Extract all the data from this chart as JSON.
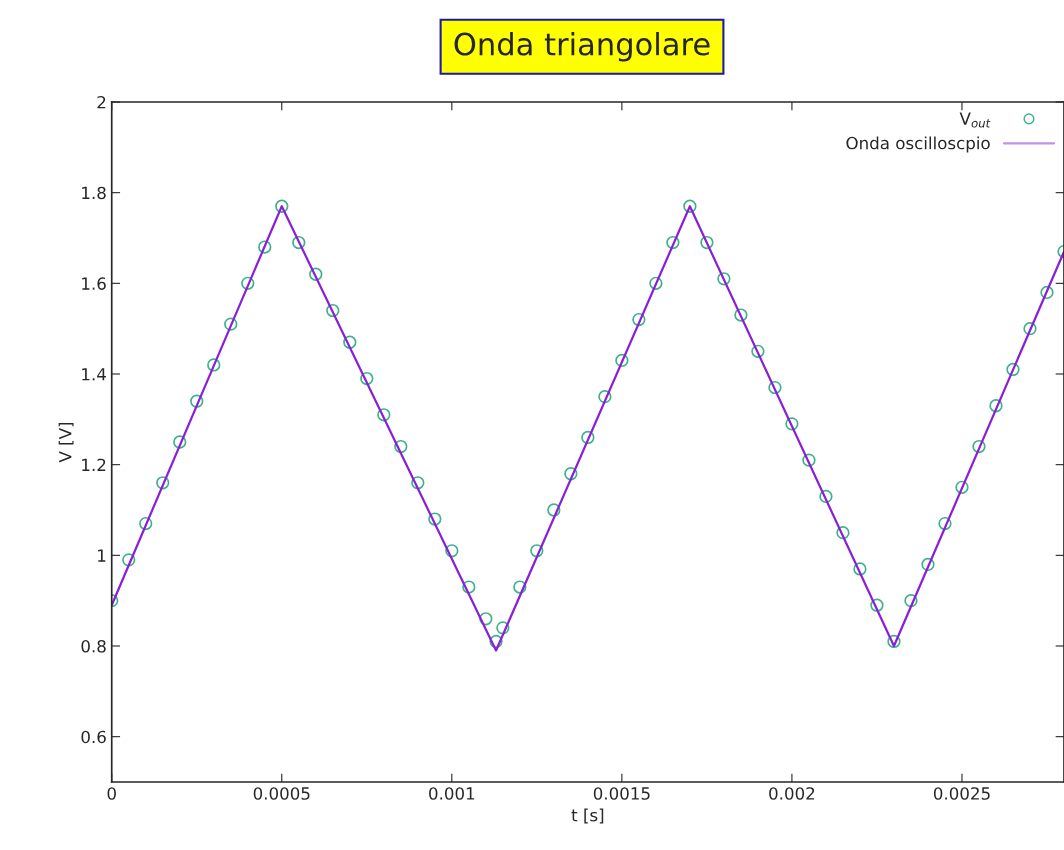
{
  "chart_data": {
    "type": "scatter",
    "title": "Onda triangolare",
    "xlabel": "t [s]",
    "ylabel": "V [V]",
    "xlim": [
      0,
      0.0028
    ],
    "ylim": [
      0.5,
      2
    ],
    "xticks": [
      0,
      0.0005,
      0.001,
      0.0015,
      0.002,
      0.0025
    ],
    "yticks": [
      0.6,
      0.8,
      1,
      1.2,
      1.4,
      1.6,
      1.8,
      2
    ],
    "legend": "top right",
    "grid": false,
    "series": [
      {
        "name": "V$_{out}$",
        "marker": "circle",
        "color": "#3fb08c",
        "x": [
          0,
          5e-05,
          0.0001,
          0.00015,
          0.0002,
          0.00025,
          0.0003,
          0.00035,
          0.0004,
          0.00045,
          0.0005,
          0.00055,
          0.0006,
          0.00065,
          0.0007,
          0.00075,
          0.0008,
          0.00085,
          0.0009,
          0.00095,
          0.001,
          0.00105,
          0.0011,
          0.00113,
          0.00115,
          0.0012,
          0.00125,
          0.0013,
          0.00135,
          0.0014,
          0.00145,
          0.0015,
          0.00155,
          0.0016,
          0.00165,
          0.0017,
          0.00175,
          0.0018,
          0.00185,
          0.0019,
          0.00195,
          0.002,
          0.00205,
          0.0021,
          0.00215,
          0.0022,
          0.00225,
          0.0023,
          0.00235,
          0.0024,
          0.00245,
          0.0025,
          0.00255,
          0.0026,
          0.00265,
          0.0027,
          0.00275,
          0.0028
        ],
        "values": [
          0.9,
          0.99,
          1.07,
          1.16,
          1.25,
          1.34,
          1.42,
          1.51,
          1.6,
          1.68,
          1.77,
          1.69,
          1.62,
          1.54,
          1.47,
          1.39,
          1.31,
          1.24,
          1.16,
          1.08,
          1.01,
          0.93,
          0.86,
          0.81,
          0.84,
          0.93,
          1.01,
          1.1,
          1.18,
          1.26,
          1.35,
          1.43,
          1.52,
          1.6,
          1.69,
          1.77,
          1.69,
          1.61,
          1.53,
          1.45,
          1.37,
          1.29,
          1.21,
          1.13,
          1.05,
          0.97,
          0.89,
          0.81,
          0.9,
          0.98,
          1.07,
          1.15,
          1.24,
          1.33,
          1.41,
          1.5,
          1.58,
          1.67
        ]
      },
      {
        "name": "Onda oscilloscpio",
        "type": "line",
        "marker": "none",
        "line_style": "solid",
        "color": "#8a1fd8",
        "x": [
          0,
          0.0005,
          0.00113,
          0.0017,
          0.0023,
          0.0028
        ],
        "values": [
          0.89,
          1.77,
          0.79,
          1.77,
          0.8,
          1.67
        ]
      }
    ]
  }
}
